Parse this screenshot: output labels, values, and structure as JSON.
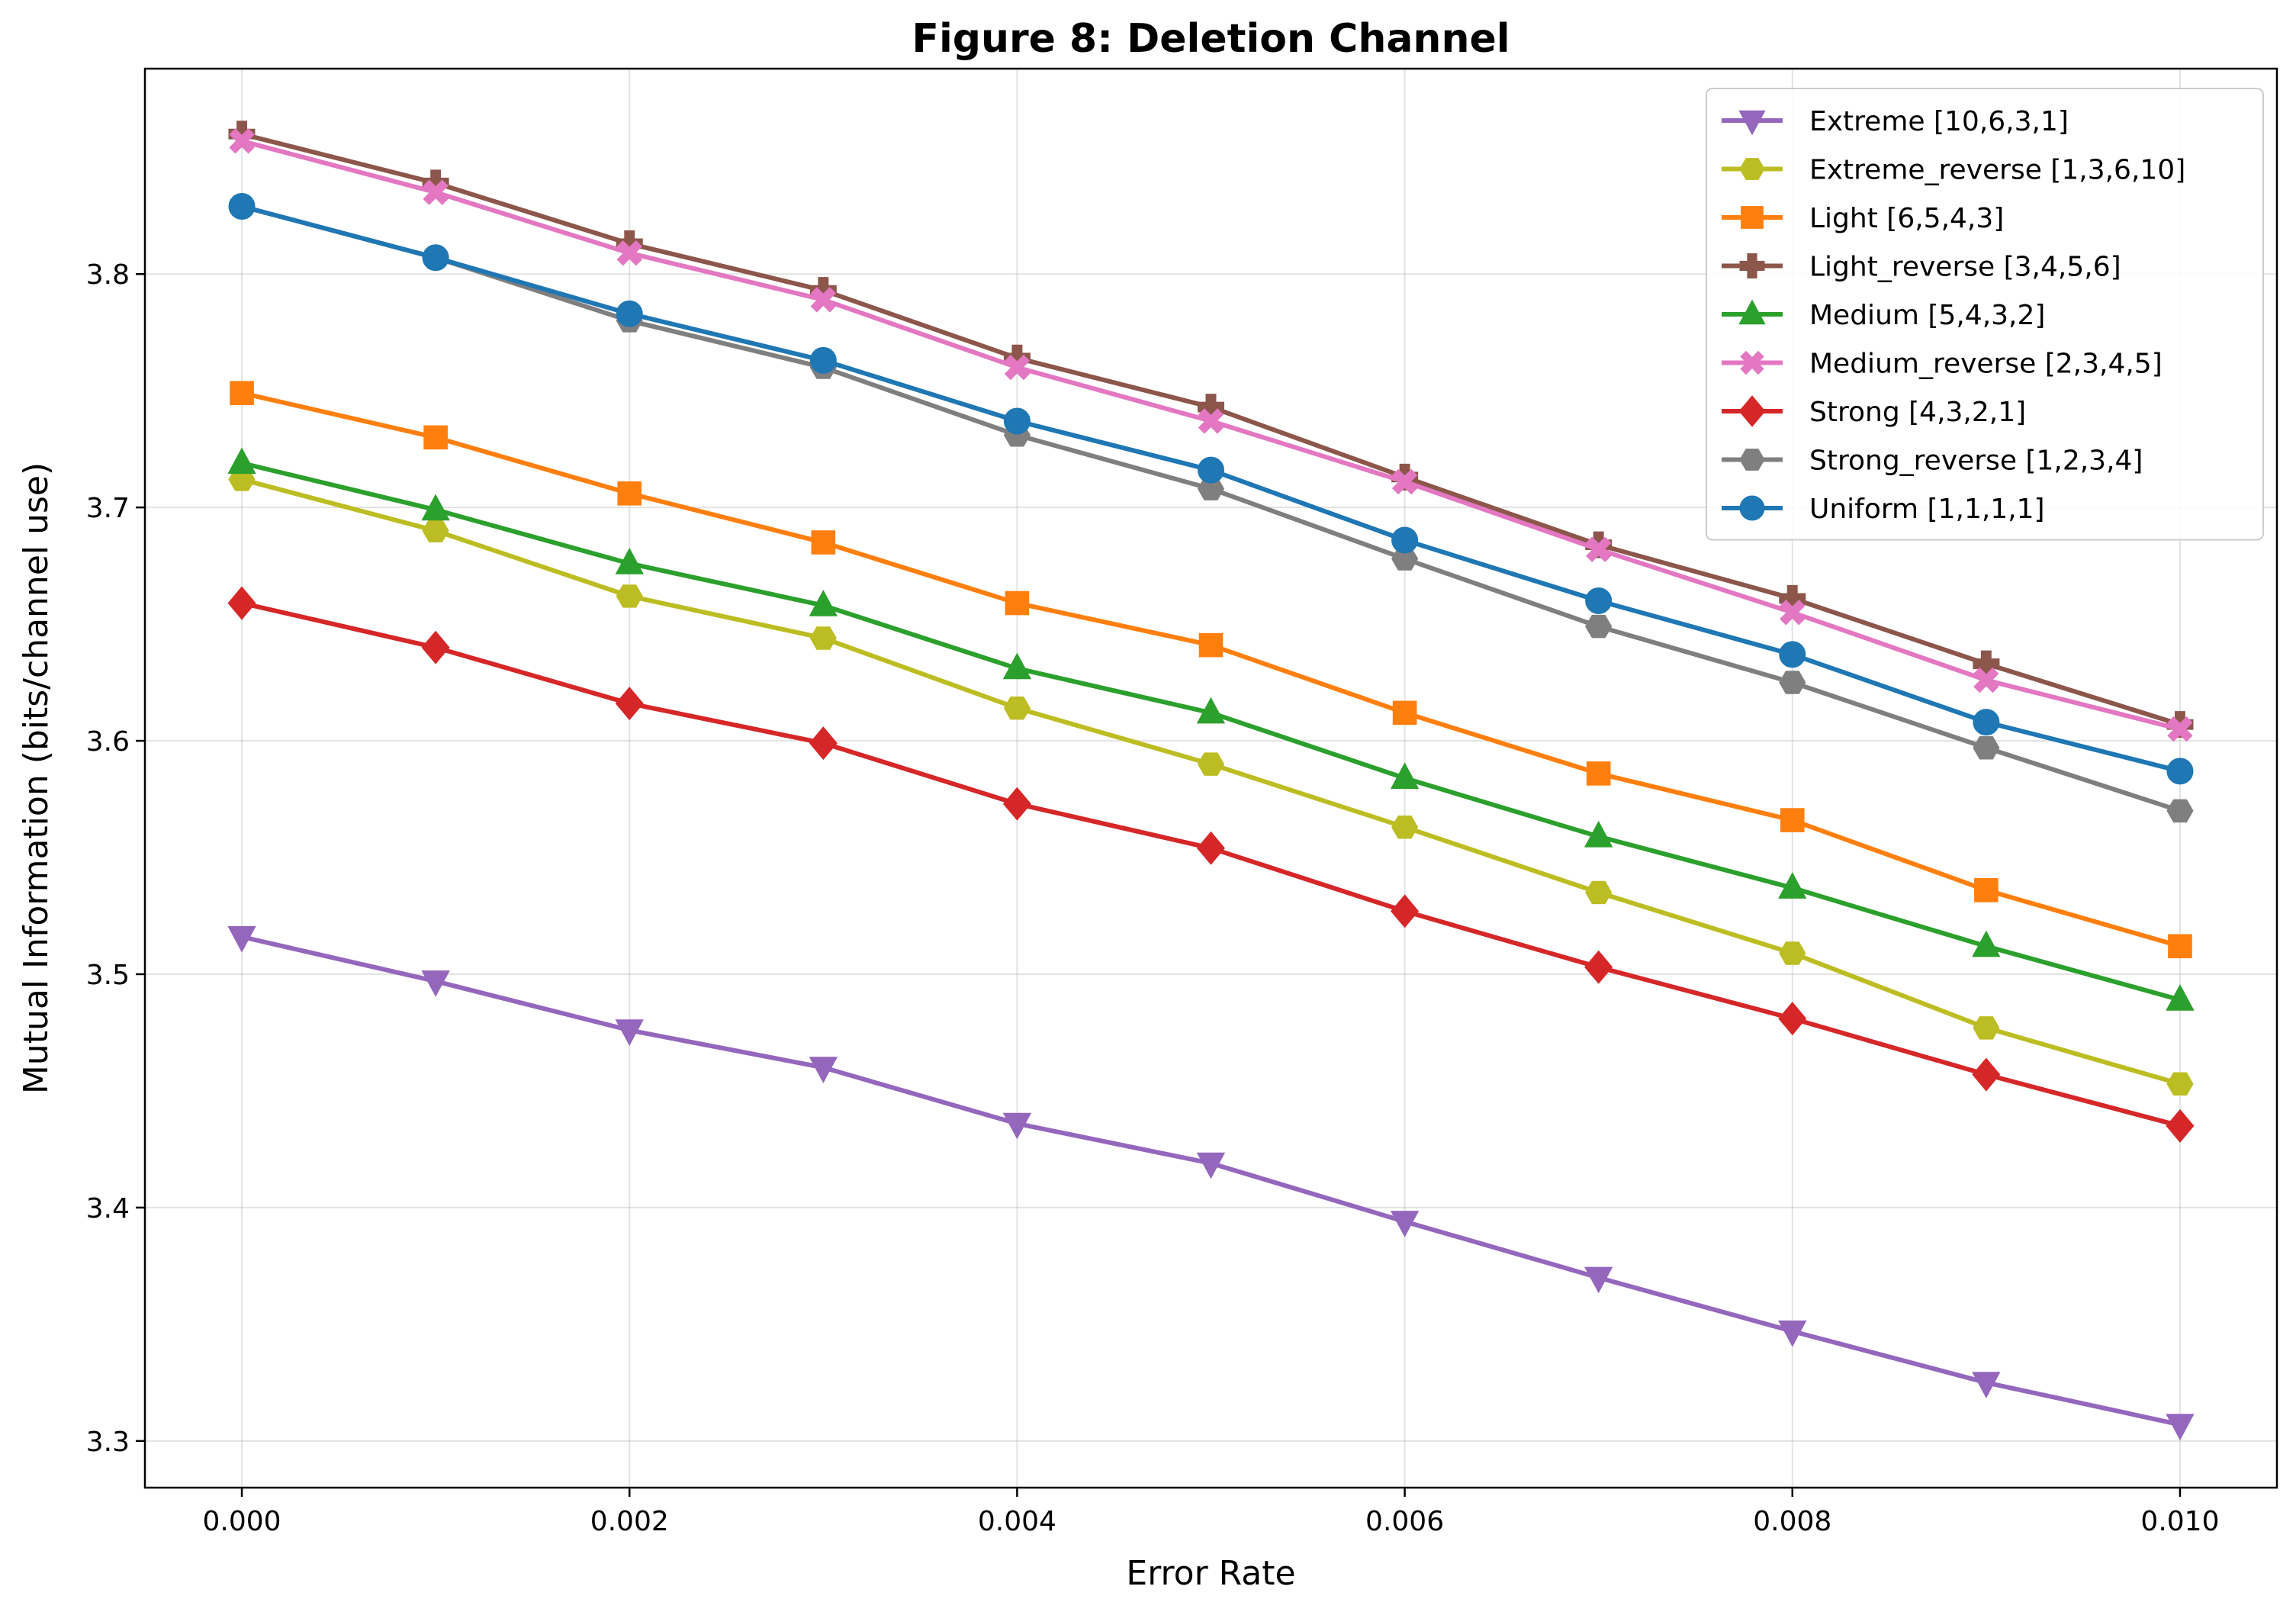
{
  "chart_data": {
    "type": "line",
    "title": "Figure 8: Deletion Channel",
    "xlabel": "Error Rate",
    "ylabel": "Mutual Information (bits/channel use)",
    "xlim": [
      -0.0005,
      0.0105
    ],
    "ylim": [
      3.28,
      3.888
    ],
    "x": [
      0.0,
      0.001,
      0.002,
      0.003,
      0.004,
      0.005,
      0.006,
      0.007,
      0.008,
      0.009,
      0.01
    ],
    "xticks": [
      0.0,
      0.002,
      0.004,
      0.006,
      0.008,
      0.01
    ],
    "xtick_labels": [
      "0.000",
      "0.002",
      "0.004",
      "0.006",
      "0.008",
      "0.010"
    ],
    "yticks": [
      3.3,
      3.4,
      3.5,
      3.6,
      3.7,
      3.8
    ],
    "ytick_labels": [
      "3.3",
      "3.4",
      "3.5",
      "3.6",
      "3.7",
      "3.8"
    ],
    "grid": true,
    "legend_position": "top-right",
    "series": [
      {
        "name": "Extreme [10,6,3,1]",
        "color": "#9467bd",
        "marker": "triangle-down",
        "values": [
          3.516,
          3.497,
          3.476,
          3.46,
          3.436,
          3.419,
          3.394,
          3.37,
          3.347,
          3.325,
          3.307
        ]
      },
      {
        "name": "Extreme_reverse [1,3,6,10]",
        "color": "#bcbd22",
        "marker": "hexagon",
        "values": [
          3.712,
          3.69,
          3.662,
          3.644,
          3.614,
          3.59,
          3.563,
          3.535,
          3.509,
          3.477,
          3.453
        ]
      },
      {
        "name": "Light [6,5,4,3]",
        "color": "#ff7f0e",
        "marker": "square",
        "values": [
          3.749,
          3.73,
          3.706,
          3.685,
          3.659,
          3.641,
          3.612,
          3.586,
          3.566,
          3.536,
          3.512
        ]
      },
      {
        "name": "Light_reverse [3,4,5,6]",
        "color": "#8c564b",
        "marker": "plus",
        "values": [
          3.86,
          3.839,
          3.813,
          3.793,
          3.764,
          3.743,
          3.713,
          3.684,
          3.661,
          3.633,
          3.607
        ]
      },
      {
        "name": "Medium [5,4,3,2]",
        "color": "#2ca02c",
        "marker": "triangle-up",
        "values": [
          3.719,
          3.699,
          3.676,
          3.658,
          3.631,
          3.612,
          3.584,
          3.559,
          3.537,
          3.512,
          3.489
        ]
      },
      {
        "name": "Medium_reverse [2,3,4,5]",
        "color": "#e377c2",
        "marker": "x",
        "values": [
          3.857,
          3.835,
          3.809,
          3.789,
          3.76,
          3.737,
          3.711,
          3.682,
          3.655,
          3.626,
          3.605
        ]
      },
      {
        "name": "Strong [4,3,2,1]",
        "color": "#d62728",
        "marker": "diamond",
        "values": [
          3.659,
          3.64,
          3.616,
          3.599,
          3.573,
          3.554,
          3.527,
          3.503,
          3.481,
          3.457,
          3.435
        ]
      },
      {
        "name": "Strong_reverse [1,2,3,4]",
        "color": "#7f7f7f",
        "marker": "hexagon",
        "values": [
          3.829,
          3.807,
          3.78,
          3.76,
          3.731,
          3.708,
          3.678,
          3.649,
          3.625,
          3.597,
          3.57
        ]
      },
      {
        "name": "Uniform [1,1,1,1]",
        "color": "#1f77b4",
        "marker": "circle",
        "values": [
          3.829,
          3.807,
          3.783,
          3.763,
          3.737,
          3.716,
          3.686,
          3.66,
          3.637,
          3.608,
          3.587
        ]
      }
    ]
  }
}
